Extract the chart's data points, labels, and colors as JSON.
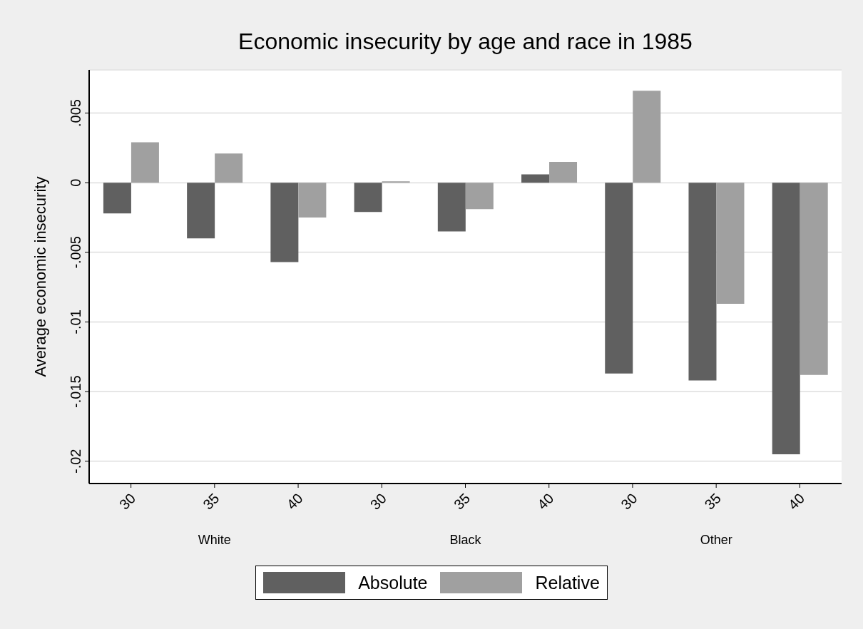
{
  "chart_data": {
    "type": "bar",
    "title": "Economic insecurity by age and race in 1985",
    "ylabel": "Average economic insecurity",
    "categories": [
      "30",
      "35",
      "40",
      "30",
      "35",
      "40",
      "30",
      "35",
      "40"
    ],
    "annotations": [
      "White",
      "Black",
      "Other"
    ],
    "series": [
      {
        "name": "Absolute",
        "color": "#606060",
        "values": [
          -0.0022,
          -0.004,
          -0.0057,
          -0.0021,
          -0.0035,
          0.0006,
          -0.0137,
          -0.0142,
          -0.0195
        ]
      },
      {
        "name": "Relative",
        "color": "#a0a0a0",
        "values": [
          0.0029,
          0.0021,
          -0.0025,
          0.0001,
          -0.0019,
          0.0015,
          0.0066,
          -0.0087,
          -0.0138
        ]
      }
    ],
    "ylim": [
      -0.0216,
      0.0081
    ],
    "yticks": [
      {
        "value": -0.02,
        "label": "-.02"
      },
      {
        "value": -0.015,
        "label": "-.015"
      },
      {
        "value": -0.01,
        "label": "-.01"
      },
      {
        "value": -0.005,
        "label": "-.005"
      },
      {
        "value": 0,
        "label": "0"
      },
      {
        "value": 0.005,
        "label": ".005"
      }
    ],
    "grid": "y",
    "legend": "bottom"
  }
}
